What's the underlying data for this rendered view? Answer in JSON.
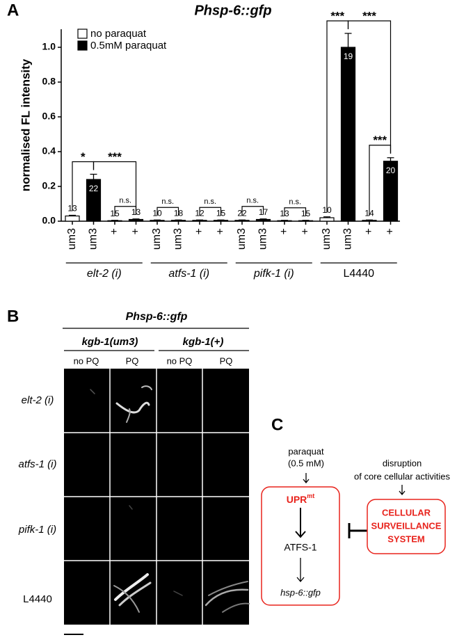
{
  "panel_labels": [
    "A",
    "B",
    "C"
  ],
  "chart_data": {
    "type": "bar",
    "title": "Phsp-6::gfp",
    "y_label": "normalised FL intensity",
    "categories": [
      "um3",
      "um3",
      "+",
      "+",
      "um3",
      "um3",
      "+",
      "+",
      "um3",
      "um3",
      "+",
      "+",
      "um3",
      "um3",
      "+",
      "+"
    ],
    "groups": [
      "elt-2 (i)",
      "atfs-1 (i)",
      "pifk-1 (i)",
      "L4440"
    ],
    "series": [
      {
        "name": "no paraquat",
        "color": "#ffffff",
        "values": [
          0.03,
          null,
          0.003,
          null,
          0.005,
          null,
          0.005,
          null,
          0.005,
          null,
          0.003,
          null,
          0.02,
          null,
          0.005,
          null
        ],
        "errors": [
          0.004,
          null,
          0.002,
          null,
          0.002,
          null,
          0.002,
          null,
          0.002,
          null,
          0.002,
          null,
          0.005,
          null,
          0.002,
          null
        ],
        "n": [
          13,
          null,
          15,
          null,
          10,
          null,
          12,
          null,
          22,
          null,
          13,
          null,
          10,
          null,
          14,
          null
        ]
      },
      {
        "name": "0.5mM paraquat",
        "color": "#000000",
        "values": [
          null,
          0.24,
          null,
          0.01,
          null,
          0.005,
          null,
          0.005,
          null,
          0.01,
          null,
          0.003,
          null,
          1.0,
          null,
          0.345
        ],
        "errors": [
          null,
          0.03,
          null,
          0.003,
          null,
          0.002,
          null,
          0.002,
          null,
          0.003,
          null,
          0.002,
          null,
          0.08,
          null,
          0.02
        ],
        "n": [
          null,
          22,
          null,
          13,
          null,
          18,
          null,
          15,
          null,
          17,
          null,
          15,
          null,
          19,
          null,
          20
        ]
      }
    ],
    "ylim": [
      0,
      1.1
    ],
    "yticks": [
      {
        "value": 0,
        "label": "0.0"
      },
      0.2,
      0.4,
      0.6,
      0.8,
      {
        "value": 1,
        "label": "1.0"
      }
    ],
    "legend": "upper left",
    "annotations": [
      {
        "label": "*",
        "from": 0,
        "to": 1
      },
      {
        "label": "n.s.",
        "from": 2,
        "to": 3
      },
      {
        "label": "n.s.",
        "from": 4,
        "to": 5
      },
      {
        "label": "n.s.",
        "from": 6,
        "to": 7
      },
      {
        "label": "n.s.",
        "from": 8,
        "to": 9
      },
      {
        "label": "n.s.",
        "from": 10,
        "to": 11
      },
      {
        "label": "***",
        "from": 12,
        "to": 13
      },
      {
        "label": "***",
        "from": 14,
        "to": 15
      },
      {
        "label": "***",
        "from": 13,
        "to": 15
      },
      {
        "label": "***",
        "from": 1,
        "to": 3
      }
    ]
  },
  "panel_b": {
    "title": "Phsp-6::gfp",
    "column_groups": [
      "kgb-1(um3)",
      "kgb-1(+)"
    ],
    "columns": [
      "no PQ",
      "PQ",
      "no PQ",
      "PQ"
    ],
    "rows": [
      "elt-2 (i)",
      "atfs-1 (i)",
      "pifk-1 (i)",
      "L4440"
    ]
  },
  "panel_c": {
    "stressor": [
      "paraquat",
      "(0.5 mM)"
    ],
    "upr": "UPR",
    "upr_sup": "mt",
    "factor": "ATFS-1",
    "reporter": "hsp-6::gfp",
    "disruption": [
      "disruption",
      "of core cellular activities"
    ],
    "surveillance": [
      "CELLULAR",
      "SURVEILLANCE",
      "SYSTEM"
    ]
  }
}
